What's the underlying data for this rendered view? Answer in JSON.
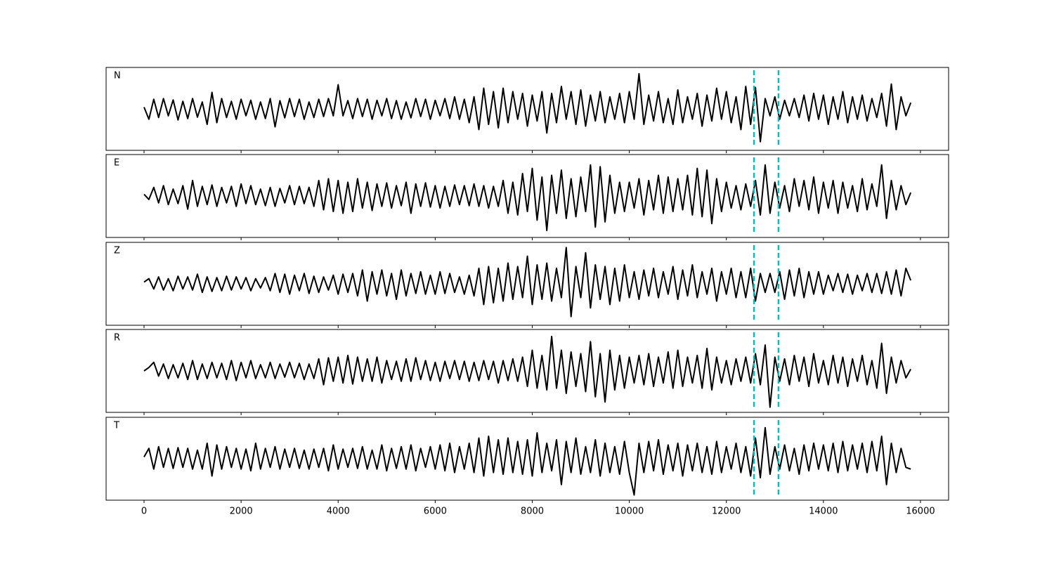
{
  "chart_data": {
    "type": "line",
    "x": [
      0,
      100,
      200,
      300,
      400,
      500,
      600,
      700,
      800,
      900,
      1000,
      1100,
      1200,
      1300,
      1400,
      1500,
      1600,
      1700,
      1800,
      1900,
      2000,
      2100,
      2200,
      2300,
      2400,
      2500,
      2600,
      2700,
      2800,
      2900,
      3000,
      3100,
      3200,
      3300,
      3400,
      3500,
      3600,
      3700,
      3800,
      3900,
      4000,
      4100,
      4200,
      4300,
      4400,
      4500,
      4600,
      4700,
      4800,
      4900,
      5000,
      5100,
      5200,
      5300,
      5400,
      5500,
      5600,
      5700,
      5800,
      5900,
      6000,
      6100,
      6200,
      6300,
      6400,
      6500,
      6600,
      6700,
      6800,
      6900,
      7000,
      7100,
      7200,
      7300,
      7400,
      7500,
      7600,
      7700,
      7800,
      7900,
      8000,
      8100,
      8200,
      8300,
      8400,
      8500,
      8600,
      8700,
      8800,
      8900,
      9000,
      9100,
      9200,
      9300,
      9400,
      9500,
      9600,
      9700,
      9800,
      9900,
      10000,
      10100,
      10200,
      10300,
      10400,
      10500,
      10600,
      10700,
      10800,
      10900,
      11000,
      11100,
      11200,
      11300,
      11400,
      11500,
      11600,
      11700,
      11800,
      11900,
      12000,
      12100,
      12200,
      12300,
      12400,
      12500,
      12600,
      12700,
      12800,
      12900,
      13000,
      13100,
      13200,
      13300,
      13400,
      13500,
      13600,
      13700,
      13800,
      13900,
      14000,
      14100,
      14200,
      14300,
      14400,
      14500,
      14600,
      14700,
      14800,
      14900,
      15000,
      15100,
      15200,
      15300,
      15400,
      15500,
      15600,
      15700,
      15800
    ],
    "xlim": [
      -782,
      16580
    ],
    "xticks": [
      0,
      2000,
      4000,
      6000,
      8000,
      10000,
      12000,
      14000,
      16000
    ],
    "ylim": [
      -1.2,
      1.2
    ],
    "color": "#000000",
    "markers": [
      12570,
      13075
    ],
    "marker_color": "#00bfbf",
    "panels": [
      {
        "label": "N",
        "values": [
          0.05,
          -0.3,
          0.28,
          -0.25,
          0.3,
          -0.2,
          0.26,
          -0.32,
          0.22,
          -0.28,
          0.3,
          -0.24,
          0.2,
          -0.45,
          0.48,
          -0.4,
          0.3,
          -0.25,
          0.22,
          -0.3,
          0.28,
          -0.2,
          0.25,
          -0.3,
          0.2,
          -0.28,
          0.3,
          -0.52,
          0.24,
          -0.26,
          0.3,
          -0.22,
          0.28,
          -0.3,
          0.2,
          -0.25,
          0.28,
          -0.22,
          0.3,
          -0.2,
          0.7,
          -0.2,
          0.24,
          -0.28,
          0.3,
          -0.22,
          0.28,
          -0.3,
          0.25,
          -0.2,
          0.3,
          -0.28,
          0.24,
          -0.3,
          0.2,
          -0.26,
          0.3,
          -0.22,
          0.28,
          -0.3,
          0.25,
          -0.2,
          0.3,
          -0.28,
          0.35,
          -0.3,
          0.28,
          -0.4,
          0.35,
          -0.6,
          0.6,
          -0.45,
          0.5,
          -0.55,
          0.6,
          -0.4,
          0.5,
          -0.3,
          0.45,
          -0.5,
          0.4,
          -0.35,
          0.5,
          -0.7,
          0.45,
          -0.4,
          0.65,
          -0.3,
          0.5,
          -0.45,
          0.55,
          -0.5,
          0.4,
          -0.35,
          0.5,
          -0.4,
          0.35,
          -0.3,
          0.45,
          -0.4,
          0.5,
          -0.3,
          1.02,
          -0.45,
          0.4,
          -0.35,
          0.5,
          -0.4,
          0.3,
          -0.45,
          0.55,
          -0.4,
          0.35,
          -0.3,
          0.45,
          -0.5,
          0.4,
          -0.35,
          0.6,
          -0.3,
          0.5,
          -0.4,
          0.35,
          -0.6,
          0.65,
          -0.45,
          0.62,
          -0.95,
          0.3,
          -0.2,
          0.35,
          -0.3,
          0.25,
          -0.2,
          0.3,
          -0.25,
          0.4,
          -0.35,
          0.45,
          -0.3,
          0.4,
          -0.45,
          0.35,
          -0.3,
          0.5,
          -0.4,
          0.35,
          -0.3,
          0.4,
          -0.35,
          0.3,
          -0.25,
          0.45,
          -0.5,
          0.72,
          -0.6,
          0.35,
          -0.2,
          0.18
        ]
      },
      {
        "label": "E",
        "values": [
          0.05,
          -0.1,
          0.25,
          -0.2,
          0.3,
          -0.25,
          0.2,
          -0.22,
          0.3,
          -0.38,
          0.45,
          -0.3,
          0.28,
          -0.25,
          0.32,
          -0.3,
          0.25,
          -0.2,
          0.28,
          -0.3,
          0.35,
          -0.22,
          0.3,
          -0.25,
          0.2,
          -0.28,
          0.25,
          -0.3,
          0.22,
          -0.2,
          0.3,
          -0.25,
          0.28,
          -0.22,
          0.25,
          -0.3,
          0.45,
          -0.4,
          0.5,
          -0.45,
          0.45,
          -0.5,
          0.4,
          -0.45,
          0.5,
          -0.35,
          0.4,
          -0.42,
          0.35,
          -0.3,
          0.38,
          -0.35,
          0.3,
          -0.28,
          0.4,
          -0.5,
          0.35,
          -0.3,
          0.38,
          -0.32,
          0.3,
          -0.35,
          0.28,
          -0.3,
          0.32,
          -0.25,
          0.3,
          -0.28,
          0.35,
          -0.3,
          0.3,
          -0.35,
          0.28,
          -0.3,
          0.45,
          -0.5,
          0.4,
          -0.55,
          0.65,
          -0.45,
          0.8,
          -0.7,
          0.55,
          -1.0,
          0.6,
          -0.5,
          0.75,
          -0.65,
          0.5,
          -0.6,
          0.55,
          -0.45,
          0.9,
          -0.9,
          0.85,
          -0.75,
          0.6,
          -0.5,
          0.4,
          -0.45,
          0.4,
          -0.35,
          0.5,
          -0.55,
          0.45,
          -0.4,
          0.6,
          -0.5,
          0.55,
          -0.45,
          0.5,
          -0.4,
          0.6,
          -0.55,
          0.8,
          -0.6,
          0.75,
          -0.8,
          0.5,
          -0.45,
          0.4,
          -0.35,
          0.3,
          -0.4,
          0.35,
          -0.3,
          0.45,
          -0.55,
          0.9,
          -0.5,
          0.4,
          -0.35,
          0.3,
          -0.45,
          0.5,
          -0.3,
          0.45,
          -0.4,
          0.55,
          -0.5,
          0.4,
          -0.35,
          0.45,
          -0.5,
          0.4,
          -0.35,
          0.3,
          -0.45,
          0.5,
          -0.4,
          0.35,
          -0.3,
          0.9,
          -0.65,
          0.45,
          -0.4,
          0.3,
          -0.25,
          0.1
        ]
      },
      {
        "label": "Z",
        "values": [
          0.05,
          0.15,
          -0.15,
          0.2,
          -0.18,
          0.15,
          -0.2,
          0.22,
          -0.15,
          0.2,
          -0.18,
          0.28,
          -0.25,
          0.2,
          -0.22,
          0.18,
          -0.2,
          0.22,
          -0.18,
          0.2,
          -0.15,
          0.18,
          -0.2,
          0.15,
          -0.12,
          0.18,
          -0.2,
          0.3,
          -0.25,
          0.28,
          -0.3,
          0.25,
          -0.2,
          0.3,
          -0.28,
          0.22,
          -0.25,
          0.2,
          -0.18,
          0.25,
          -0.3,
          0.28,
          -0.25,
          0.3,
          -0.35,
          0.4,
          -0.5,
          0.35,
          -0.3,
          0.4,
          -0.35,
          0.3,
          -0.45,
          0.4,
          -0.35,
          0.3,
          -0.28,
          0.35,
          -0.3,
          0.25,
          -0.3,
          0.35,
          -0.28,
          0.3,
          -0.25,
          0.2,
          -0.3,
          0.25,
          -0.35,
          0.45,
          -0.6,
          0.5,
          -0.55,
          0.45,
          -0.5,
          0.6,
          -0.45,
          0.5,
          -0.4,
          0.8,
          -0.6,
          0.55,
          -0.45,
          0.6,
          -0.5,
          0.45,
          -0.4,
          1.05,
          -0.95,
          0.5,
          -0.4,
          0.9,
          -0.7,
          0.55,
          -0.45,
          0.5,
          -0.6,
          0.45,
          -0.5,
          0.55,
          -0.4,
          0.35,
          -0.45,
          0.4,
          -0.35,
          0.45,
          -0.4,
          0.35,
          -0.3,
          0.5,
          -0.45,
          0.4,
          -0.35,
          0.55,
          -0.4,
          0.35,
          -0.3,
          0.45,
          -0.5,
          0.35,
          -0.3,
          0.45,
          -0.4,
          0.35,
          -0.4,
          0.45,
          -0.5,
          0.3,
          -0.25,
          0.3,
          -0.25,
          0.35,
          -0.45,
          0.4,
          -0.35,
          0.45,
          -0.4,
          0.35,
          -0.3,
          0.35,
          -0.3,
          0.25,
          -0.2,
          0.3,
          -0.25,
          0.28,
          -0.3,
          0.25,
          -0.2,
          0.3,
          -0.25,
          0.3,
          -0.28,
          0.35,
          -0.3,
          0.4,
          -0.35,
          0.45,
          0.1
        ]
      },
      {
        "label": "R",
        "values": [
          0.0,
          0.1,
          0.25,
          -0.15,
          0.2,
          -0.22,
          0.18,
          -0.2,
          0.22,
          -0.25,
          0.3,
          -0.25,
          0.2,
          -0.22,
          0.25,
          -0.2,
          0.22,
          -0.25,
          0.3,
          -0.28,
          0.25,
          -0.2,
          0.3,
          -0.22,
          0.18,
          -0.2,
          0.25,
          -0.22,
          0.2,
          -0.18,
          0.25,
          -0.2,
          0.22,
          -0.25,
          0.2,
          -0.22,
          0.35,
          -0.4,
          0.38,
          -0.3,
          0.4,
          -0.35,
          0.45,
          -0.38,
          0.4,
          -0.3,
          0.35,
          -0.3,
          0.4,
          -0.35,
          0.3,
          -0.25,
          0.28,
          -0.3,
          0.35,
          -0.3,
          0.38,
          -0.25,
          0.3,
          -0.28,
          0.25,
          -0.3,
          0.28,
          -0.22,
          0.3,
          -0.25,
          0.28,
          -0.3,
          0.25,
          -0.28,
          0.3,
          -0.25,
          0.28,
          -0.35,
          0.3,
          -0.28,
          0.35,
          -0.3,
          0.4,
          -0.45,
          0.6,
          -0.5,
          0.45,
          -0.55,
          1.0,
          -0.5,
          0.6,
          -0.65,
          0.55,
          -0.45,
          0.5,
          -0.6,
          0.85,
          -0.75,
          0.5,
          -0.9,
          0.6,
          -0.55,
          0.45,
          -0.5,
          0.4,
          -0.35,
          0.45,
          -0.4,
          0.5,
          -0.45,
          0.4,
          -0.35,
          0.55,
          -0.5,
          0.6,
          -0.45,
          0.4,
          -0.35,
          0.45,
          -0.5,
          0.65,
          -0.55,
          0.4,
          -0.35,
          0.3,
          -0.4,
          0.35,
          -0.3,
          0.4,
          -0.35,
          0.5,
          -0.4,
          0.75,
          -1.05,
          0.4,
          -0.3,
          0.35,
          -0.4,
          0.45,
          -0.3,
          0.4,
          -0.45,
          0.5,
          -0.35,
          0.3,
          -0.4,
          0.45,
          -0.35,
          0.4,
          -0.45,
          0.35,
          -0.3,
          0.45,
          -0.4,
          0.3,
          -0.5,
          0.8,
          -0.65,
          0.4,
          -0.35,
          0.3,
          -0.2,
          0.05
        ]
      },
      {
        "label": "T",
        "values": [
          0.05,
          0.3,
          -0.3,
          0.35,
          -0.25,
          0.3,
          -0.28,
          0.32,
          -0.25,
          0.3,
          -0.3,
          0.25,
          -0.3,
          0.45,
          -0.5,
          0.4,
          -0.3,
          0.35,
          -0.25,
          0.3,
          -0.3,
          0.28,
          -0.35,
          0.45,
          -0.3,
          0.3,
          -0.25,
          0.35,
          -0.3,
          0.28,
          -0.25,
          0.3,
          -0.28,
          0.25,
          -0.3,
          0.28,
          -0.25,
          0.3,
          -0.35,
          0.4,
          -0.3,
          0.28,
          -0.25,
          0.3,
          -0.28,
          0.35,
          -0.3,
          0.25,
          -0.3,
          0.4,
          -0.35,
          0.3,
          -0.28,
          0.35,
          -0.3,
          0.4,
          -0.35,
          0.3,
          -0.25,
          0.35,
          -0.3,
          0.4,
          -0.35,
          0.45,
          -0.4,
          0.35,
          -0.3,
          0.45,
          -0.4,
          0.6,
          -0.5,
          0.65,
          -0.4,
          0.55,
          -0.45,
          0.6,
          -0.4,
          0.5,
          -0.45,
          0.55,
          -0.5,
          0.75,
          -0.4,
          0.45,
          -0.35,
          0.55,
          -0.75,
          0.5,
          -0.4,
          0.6,
          -0.45,
          0.35,
          -0.4,
          0.55,
          -0.5,
          0.45,
          -0.4,
          0.35,
          -0.45,
          0.5,
          -0.4,
          -1.05,
          0.45,
          -0.4,
          0.5,
          -0.35,
          0.55,
          -0.45,
          0.4,
          -0.35,
          0.45,
          -0.5,
          0.4,
          -0.35,
          0.45,
          -0.4,
          0.35,
          -0.45,
          0.5,
          -0.4,
          0.35,
          -0.3,
          0.45,
          -0.4,
          0.35,
          -0.5,
          0.6,
          -0.55,
          0.9,
          -0.45,
          0.35,
          -0.3,
          0.4,
          -0.35,
          0.3,
          -0.45,
          0.4,
          -0.35,
          0.45,
          -0.3,
          0.4,
          -0.35,
          0.45,
          -0.4,
          0.5,
          -0.35,
          0.4,
          -0.3,
          0.45,
          -0.4,
          0.5,
          -0.35,
          0.65,
          -0.75,
          0.45,
          -0.4,
          0.3,
          -0.25,
          -0.3
        ]
      }
    ]
  }
}
